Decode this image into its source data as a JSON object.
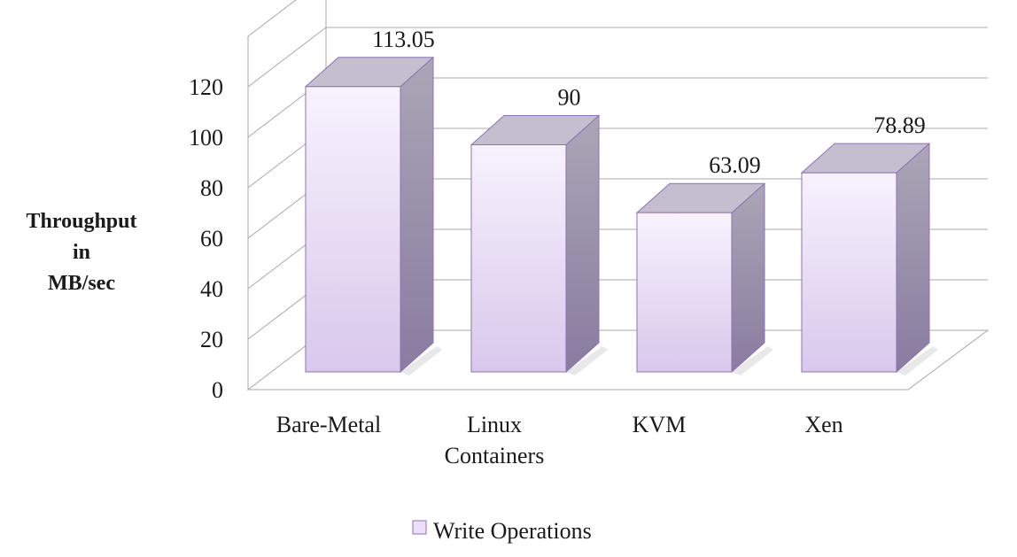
{
  "chart_data": {
    "type": "bar",
    "title": "",
    "xlabel": "",
    "ylabel": [
      "Throughput",
      "in",
      "MB/sec"
    ],
    "categories": [
      [
        "Bare-Metal"
      ],
      [
        "Linux",
        "Containers"
      ],
      [
        "KVM"
      ],
      [
        "Xen"
      ]
    ],
    "series": [
      {
        "name": "Write Operations",
        "values": [
          113.05,
          90,
          63.09,
          78.89
        ]
      }
    ],
    "data_labels": [
      "113.05",
      "90",
      "63.09",
      "78.89"
    ],
    "y_ticks": [
      "0",
      "20",
      "40",
      "60",
      "80",
      "100",
      "120"
    ],
    "ylim": [
      0,
      140
    ],
    "grid": true,
    "three_d": true,
    "legend_position": "bottom",
    "colors": {
      "bar_front_top": "#f8f2fd",
      "bar_front_bottom": "#d9c8ec",
      "bar_side_top": "#aba6b6",
      "bar_side_bottom": "#8a7ba0",
      "bar_top": "#c4bece",
      "bar_edge": "#8e72b8",
      "grid": "#a8a8a8"
    }
  }
}
